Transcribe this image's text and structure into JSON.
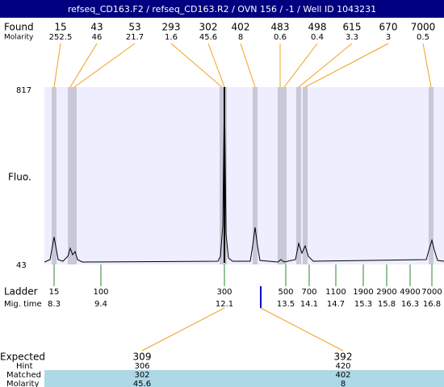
{
  "header": {
    "title": "refseq_CD163.F2 / refseq_CD163.R2 / OVN 156 / -1 / Well ID 1043231"
  },
  "found": {
    "label": "Found",
    "sizes": [
      15,
      43,
      53,
      293,
      302,
      402,
      483,
      498,
      615,
      670,
      7000
    ],
    "molarity_label": "Molarity",
    "molarity": [
      252.5,
      46,
      21.7,
      1.6,
      45.6,
      8,
      0.6,
      0.4,
      3.3,
      3,
      0.5
    ]
  },
  "plot": {
    "y_label": "Fluo.",
    "y_max": 817,
    "y_min": 43
  },
  "ladder": {
    "label": "Ladder",
    "sizes": [
      15,
      100,
      300,
      500,
      700,
      1100,
      1900,
      2900,
      4900,
      7000
    ],
    "mig_label": "Mig. time",
    "mig_times": [
      8.3,
      9.4,
      12.1,
      13.5,
      14.1,
      14.7,
      15.3,
      15.8,
      16.3,
      16.8
    ]
  },
  "expected": {
    "label": "Expected",
    "values": [
      309,
      392
    ],
    "hint_label": "Hint",
    "hint": [
      306,
      420
    ],
    "matched_label": "Matched",
    "matched": [
      302,
      402
    ],
    "molarity_label": "Molarity",
    "molarity": [
      45.6,
      8
    ]
  }
}
